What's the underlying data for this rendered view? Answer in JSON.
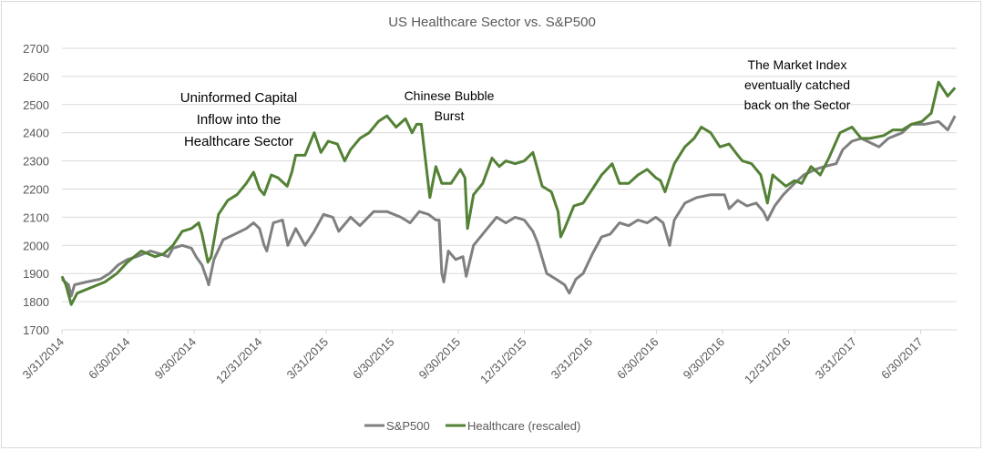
{
  "chart_data": {
    "type": "line",
    "title": "US Healthcare Sector vs. S&P500",
    "xlabel": "",
    "ylabel": "",
    "ylim": [
      1700,
      2700
    ],
    "yticks": [
      1700,
      1800,
      1900,
      2000,
      2100,
      2200,
      2300,
      2400,
      2500,
      2600,
      2700
    ],
    "x_unit": "quarters since 3/31/2014",
    "xlim": [
      0,
      13.4
    ],
    "xtick_labels": [
      "3/31/2014",
      "6/30/2014",
      "9/30/2014",
      "12/31/2014",
      "3/31/2015",
      "6/30/2015",
      "9/30/2015",
      "12/31/2015",
      "3/31/2016",
      "6/30/2016",
      "9/30/2016",
      "12/31/2016",
      "3/31/2017",
      "6/30/2017"
    ],
    "grid": "horizontal",
    "legend_position": "bottom",
    "annotations": [
      {
        "lines": [
          "Uninformed Capital",
          "Inflow into the",
          "Healthcare Sector"
        ],
        "near_quarter": 2.5,
        "near_value": 2450
      },
      {
        "lines": [
          "Chinese Bubble",
          "Burst"
        ],
        "near_quarter": 6.0,
        "near_value": 2500
      },
      {
        "lines": [
          "The Market Index",
          "eventually catched",
          "back on the Sector"
        ],
        "near_quarter": 11.4,
        "near_value": 2550
      }
    ],
    "series": [
      {
        "name": "S&P500",
        "color": "#808080",
        "points": [
          [
            0,
            1880
          ],
          [
            0.1,
            1860
          ],
          [
            0.14,
            1820
          ],
          [
            0.19,
            1860
          ],
          [
            0.37,
            1870
          ],
          [
            0.58,
            1880
          ],
          [
            0.72,
            1900
          ],
          [
            0.85,
            1930
          ],
          [
            0.99,
            1950
          ],
          [
            1.13,
            1960
          ],
          [
            1.34,
            1980
          ],
          [
            1.48,
            1970
          ],
          [
            1.61,
            1960
          ],
          [
            1.68,
            1990
          ],
          [
            1.82,
            2000
          ],
          [
            1.96,
            1990
          ],
          [
            2.03,
            1960
          ],
          [
            2.12,
            1930
          ],
          [
            2.21,
            1870
          ],
          [
            2.22,
            1860
          ],
          [
            2.3,
            1950
          ],
          [
            2.44,
            2020
          ],
          [
            2.62,
            2040
          ],
          [
            2.79,
            2060
          ],
          [
            2.9,
            2080
          ],
          [
            2.99,
            2060
          ],
          [
            3.06,
            2000
          ],
          [
            3.1,
            1980
          ],
          [
            3.2,
            2080
          ],
          [
            3.34,
            2090
          ],
          [
            3.42,
            2000
          ],
          [
            3.54,
            2060
          ],
          [
            3.68,
            2000
          ],
          [
            3.82,
            2050
          ],
          [
            3.96,
            2110
          ],
          [
            4.1,
            2100
          ],
          [
            4.19,
            2050
          ],
          [
            4.37,
            2100
          ],
          [
            4.51,
            2070
          ],
          [
            4.72,
            2120
          ],
          [
            4.92,
            2120
          ],
          [
            5.13,
            2100
          ],
          [
            5.27,
            2080
          ],
          [
            5.41,
            2120
          ],
          [
            5.55,
            2110
          ],
          [
            5.66,
            2090
          ],
          [
            5.71,
            2090
          ],
          [
            5.75,
            1900
          ],
          [
            5.78,
            1870
          ],
          [
            5.85,
            1980
          ],
          [
            5.96,
            1950
          ],
          [
            6.07,
            1960
          ],
          [
            6.12,
            1890
          ],
          [
            6.23,
            2000
          ],
          [
            6.37,
            2040
          ],
          [
            6.58,
            2100
          ],
          [
            6.72,
            2080
          ],
          [
            6.86,
            2100
          ],
          [
            7.0,
            2090
          ],
          [
            7.13,
            2050
          ],
          [
            7.2,
            2010
          ],
          [
            7.34,
            1900
          ],
          [
            7.48,
            1880
          ],
          [
            7.61,
            1860
          ],
          [
            7.68,
            1830
          ],
          [
            7.78,
            1880
          ],
          [
            7.89,
            1900
          ],
          [
            8.03,
            1970
          ],
          [
            8.17,
            2030
          ],
          [
            8.3,
            2040
          ],
          [
            8.44,
            2080
          ],
          [
            8.58,
            2070
          ],
          [
            8.72,
            2090
          ],
          [
            8.86,
            2080
          ],
          [
            8.99,
            2100
          ],
          [
            9.1,
            2080
          ],
          [
            9.2,
            2000
          ],
          [
            9.27,
            2090
          ],
          [
            9.43,
            2150
          ],
          [
            9.61,
            2170
          ],
          [
            9.82,
            2180
          ],
          [
            10.03,
            2180
          ],
          [
            10.1,
            2130
          ],
          [
            10.23,
            2160
          ],
          [
            10.37,
            2140
          ],
          [
            10.51,
            2150
          ],
          [
            10.62,
            2120
          ],
          [
            10.68,
            2090
          ],
          [
            10.79,
            2140
          ],
          [
            10.92,
            2180
          ],
          [
            11.09,
            2220
          ],
          [
            11.23,
            2250
          ],
          [
            11.41,
            2270
          ],
          [
            11.54,
            2280
          ],
          [
            11.72,
            2290
          ],
          [
            11.82,
            2340
          ],
          [
            11.96,
            2370
          ],
          [
            12.1,
            2380
          ],
          [
            12.28,
            2360
          ],
          [
            12.37,
            2350
          ],
          [
            12.51,
            2380
          ],
          [
            12.72,
            2400
          ],
          [
            12.86,
            2430
          ],
          [
            13.06,
            2430
          ],
          [
            13.27,
            2440
          ],
          [
            13.41,
            2410
          ],
          [
            13.52,
            2460
          ]
        ]
      },
      {
        "name": "Healthcare (rescaled)",
        "color": "#538135",
        "points": [
          [
            0,
            1890
          ],
          [
            0.06,
            1860
          ],
          [
            0.14,
            1790
          ],
          [
            0.23,
            1830
          ],
          [
            0.44,
            1850
          ],
          [
            0.65,
            1870
          ],
          [
            0.83,
            1900
          ],
          [
            0.99,
            1940
          ],
          [
            1.2,
            1980
          ],
          [
            1.41,
            1960
          ],
          [
            1.54,
            1970
          ],
          [
            1.68,
            2000
          ],
          [
            1.82,
            2050
          ],
          [
            1.96,
            2060
          ],
          [
            2.07,
            2080
          ],
          [
            2.12,
            2040
          ],
          [
            2.21,
            1940
          ],
          [
            2.26,
            1960
          ],
          [
            2.37,
            2110
          ],
          [
            2.51,
            2160
          ],
          [
            2.65,
            2180
          ],
          [
            2.79,
            2220
          ],
          [
            2.9,
            2260
          ],
          [
            2.99,
            2200
          ],
          [
            3.06,
            2180
          ],
          [
            3.17,
            2250
          ],
          [
            3.27,
            2240
          ],
          [
            3.41,
            2210
          ],
          [
            3.48,
            2260
          ],
          [
            3.54,
            2320
          ],
          [
            3.68,
            2320
          ],
          [
            3.82,
            2400
          ],
          [
            3.92,
            2330
          ],
          [
            4.03,
            2370
          ],
          [
            4.17,
            2360
          ],
          [
            4.28,
            2300
          ],
          [
            4.37,
            2340
          ],
          [
            4.51,
            2380
          ],
          [
            4.65,
            2400
          ],
          [
            4.79,
            2440
          ],
          [
            4.92,
            2460
          ],
          [
            5.06,
            2420
          ],
          [
            5.2,
            2450
          ],
          [
            5.3,
            2400
          ],
          [
            5.37,
            2430
          ],
          [
            5.44,
            2430
          ],
          [
            5.57,
            2170
          ],
          [
            5.66,
            2280
          ],
          [
            5.75,
            2220
          ],
          [
            5.89,
            2220
          ],
          [
            6.03,
            2270
          ],
          [
            6.1,
            2240
          ],
          [
            6.14,
            2060
          ],
          [
            6.23,
            2180
          ],
          [
            6.37,
            2220
          ],
          [
            6.51,
            2310
          ],
          [
            6.62,
            2280
          ],
          [
            6.72,
            2300
          ],
          [
            6.86,
            2290
          ],
          [
            7.0,
            2300
          ],
          [
            7.13,
            2330
          ],
          [
            7.27,
            2210
          ],
          [
            7.41,
            2190
          ],
          [
            7.51,
            2120
          ],
          [
            7.55,
            2030
          ],
          [
            7.61,
            2060
          ],
          [
            7.75,
            2140
          ],
          [
            7.89,
            2150
          ],
          [
            8.03,
            2200
          ],
          [
            8.17,
            2250
          ],
          [
            8.33,
            2290
          ],
          [
            8.44,
            2220
          ],
          [
            8.58,
            2220
          ],
          [
            8.72,
            2250
          ],
          [
            8.86,
            2270
          ],
          [
            8.99,
            2240
          ],
          [
            9.06,
            2230
          ],
          [
            9.13,
            2190
          ],
          [
            9.27,
            2290
          ],
          [
            9.43,
            2350
          ],
          [
            9.57,
            2380
          ],
          [
            9.68,
            2420
          ],
          [
            9.82,
            2400
          ],
          [
            9.96,
            2350
          ],
          [
            10.1,
            2360
          ],
          [
            10.23,
            2320
          ],
          [
            10.3,
            2300
          ],
          [
            10.44,
            2290
          ],
          [
            10.58,
            2250
          ],
          [
            10.68,
            2150
          ],
          [
            10.76,
            2250
          ],
          [
            10.86,
            2230
          ],
          [
            10.96,
            2210
          ],
          [
            11.09,
            2230
          ],
          [
            11.2,
            2220
          ],
          [
            11.34,
            2280
          ],
          [
            11.48,
            2250
          ],
          [
            11.61,
            2310
          ],
          [
            11.78,
            2400
          ],
          [
            11.96,
            2420
          ],
          [
            12.1,
            2380
          ],
          [
            12.23,
            2380
          ],
          [
            12.44,
            2390
          ],
          [
            12.58,
            2410
          ],
          [
            12.72,
            2410
          ],
          [
            12.86,
            2430
          ],
          [
            13.02,
            2440
          ],
          [
            13.16,
            2470
          ],
          [
            13.27,
            2580
          ],
          [
            13.41,
            2530
          ],
          [
            13.52,
            2560
          ]
        ]
      }
    ]
  }
}
